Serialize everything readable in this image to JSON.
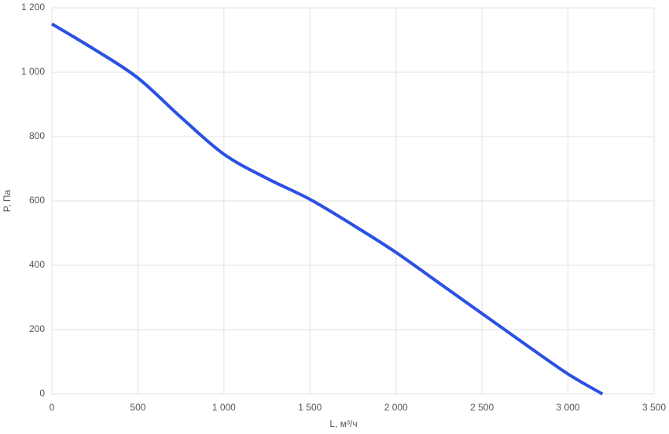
{
  "chart_data": {
    "type": "line",
    "x_label": "L, м³/ч",
    "y_label": "P, Па",
    "x": [
      0,
      250,
      500,
      750,
      1000,
      1250,
      1500,
      1750,
      2000,
      2250,
      2500,
      2750,
      3000,
      3200
    ],
    "series": [
      {
        "name": "P",
        "color": "#2b50e4",
        "values": [
          1150,
          1070,
          982,
          860,
          745,
          670,
          605,
          525,
          440,
          345,
          250,
          155,
          62,
          0
        ]
      }
    ],
    "xlim": [
      0,
      3500
    ],
    "xticks": [
      0,
      500,
      {
        "value": 1000,
        "label": "1 000"
      },
      {
        "value": 1500,
        "label": "1 500"
      },
      {
        "value": 2000,
        "label": "2 000"
      },
      {
        "value": 2500,
        "label": "2 500"
      },
      {
        "value": 3000,
        "label": "3 000"
      },
      {
        "value": 3500,
        "label": "3 500"
      }
    ],
    "ylim": [
      0,
      1200
    ],
    "yticks": [
      0,
      200,
      400,
      600,
      800,
      {
        "value": 1000,
        "label": "1 000"
      },
      {
        "value": 1200,
        "label": "1 200"
      }
    ],
    "grid": true
  }
}
